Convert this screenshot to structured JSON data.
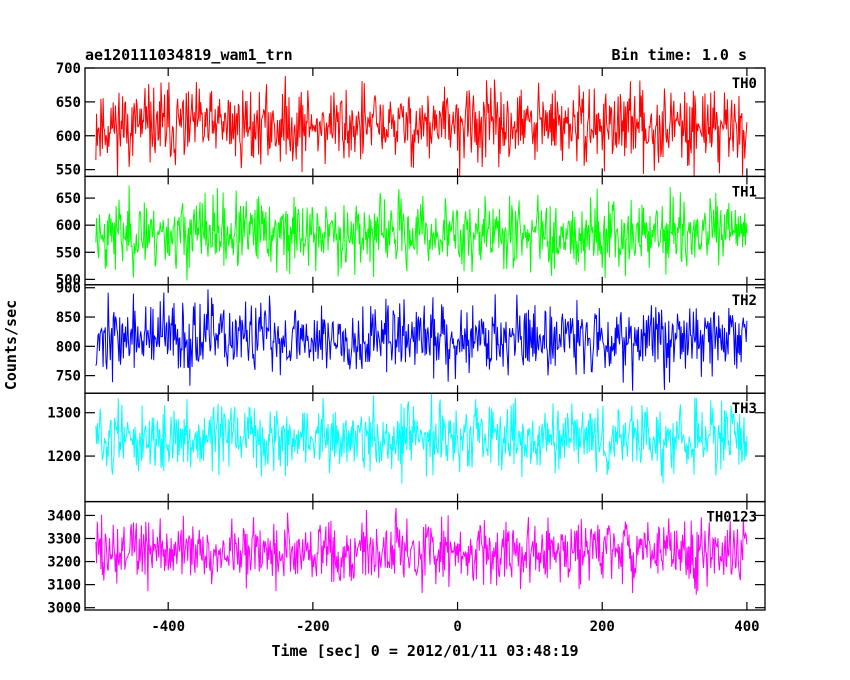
{
  "header": {
    "title": "ae120111034819_wam1_trn",
    "bin_time": "Bin time: 1.0 s"
  },
  "chart_data": {
    "type": "line",
    "xlabel": "Time [sec] 0 = 2012/01/11 03:48:19",
    "ylabel": "Counts/sec",
    "xlim": [
      -515,
      425
    ],
    "x_ticks": [
      -400,
      -200,
      0,
      200,
      400
    ],
    "x_range": [
      -500,
      400
    ],
    "bin_time_s": 1.0,
    "grid": false,
    "panels": [
      {
        "name": "TH0",
        "color": "#ff0000",
        "ylim": [
          540,
          700
        ],
        "ticks": [
          550,
          600,
          650,
          700
        ],
        "mean": 615,
        "amplitude": 60,
        "seed": 11
      },
      {
        "name": "TH1",
        "color": "#00ff00",
        "ylim": [
          490,
          690
        ],
        "ticks": [
          500,
          550,
          600,
          650
        ],
        "mean": 585,
        "amplitude": 70,
        "seed": 23
      },
      {
        "name": "TH2",
        "color": "#0000ff",
        "ylim": [
          720,
          905
        ],
        "ticks": [
          750,
          800,
          850,
          900
        ],
        "mean": 815,
        "amplitude": 65,
        "seed": 37
      },
      {
        "name": "TH3",
        "color": "#00ffff",
        "ylim": [
          1095,
          1345
        ],
        "ticks": [
          1200,
          1300
        ],
        "mean": 1240,
        "amplitude": 80,
        "seed": 51
      },
      {
        "name": "TH0123",
        "color": "#ff00ff",
        "ylim": [
          2990,
          3460
        ],
        "ticks": [
          3000,
          3100,
          3200,
          3300,
          3400
        ],
        "mean": 3245,
        "amplitude": 150,
        "seed": 73
      }
    ]
  }
}
